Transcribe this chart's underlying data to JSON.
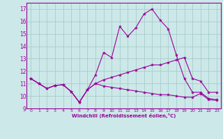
{
  "x": [
    0,
    1,
    2,
    3,
    4,
    5,
    6,
    7,
    8,
    9,
    10,
    11,
    12,
    13,
    14,
    15,
    16,
    17,
    18,
    19,
    20,
    21,
    22,
    23
  ],
  "line1": [
    11.4,
    11.0,
    10.6,
    10.85,
    10.9,
    10.35,
    9.5,
    10.5,
    11.7,
    13.5,
    13.1,
    15.6,
    14.8,
    15.5,
    16.6,
    17.0,
    16.1,
    15.4,
    13.3,
    11.4,
    10.3,
    10.3,
    9.8,
    9.7
  ],
  "line2": [
    11.4,
    11.0,
    10.6,
    10.85,
    10.9,
    10.35,
    9.5,
    10.5,
    11.0,
    11.3,
    11.5,
    11.7,
    11.9,
    12.1,
    12.3,
    12.5,
    12.5,
    12.7,
    12.9,
    13.1,
    11.4,
    11.2,
    10.3,
    10.3
  ],
  "line3": [
    11.4,
    11.0,
    10.6,
    10.85,
    10.9,
    10.35,
    9.5,
    10.5,
    11.0,
    10.8,
    10.7,
    10.6,
    10.5,
    10.4,
    10.3,
    10.2,
    10.1,
    10.1,
    10.0,
    9.9,
    9.9,
    10.2,
    9.7,
    9.65
  ],
  "line_color": "#990099",
  "bg_color": "#cce8e8",
  "grid_color": "#aacccc",
  "xlabel": "Windchill (Refroidissement éolien,°C)",
  "ylim": [
    9,
    17.5
  ],
  "xlim": [
    -0.5,
    23.5
  ],
  "yticks": [
    9,
    10,
    11,
    12,
    13,
    14,
    15,
    16,
    17
  ],
  "xticks": [
    0,
    1,
    2,
    3,
    4,
    5,
    6,
    7,
    8,
    9,
    10,
    11,
    12,
    13,
    14,
    15,
    16,
    17,
    18,
    19,
    20,
    21,
    22,
    23
  ],
  "markersize": 3,
  "linewidth": 0.8
}
